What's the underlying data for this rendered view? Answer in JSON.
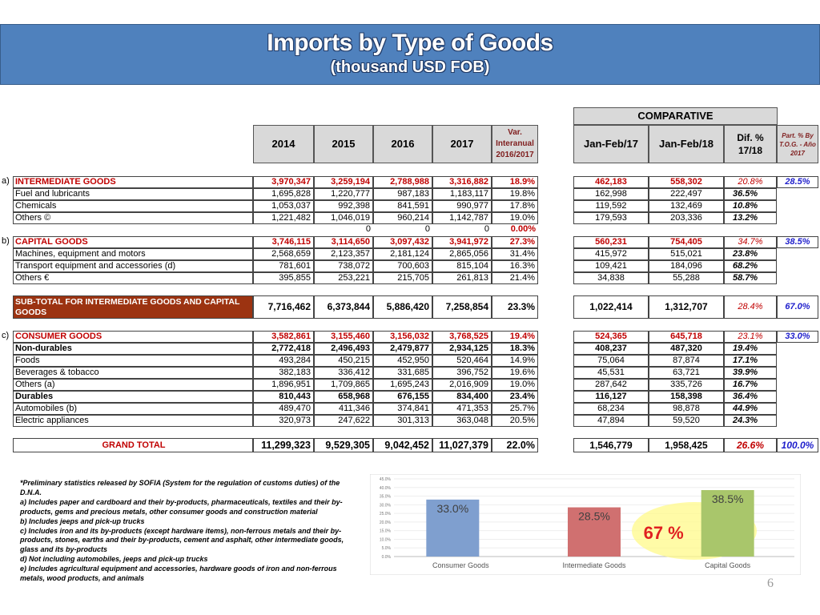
{
  "title": "Imports by Type of Goods",
  "subtitle": "(thousand USD FOB)",
  "comparative_label": "COMPARATIVE",
  "headers": {
    "y2014": "2014",
    "y2015": "2015",
    "y2016": "2016",
    "y2017": "2017",
    "var": "Var. Interanual 2016/2017",
    "jan17": "Jan-Feb/17",
    "jan18": "Jan-Feb/18",
    "dif": "Dif. % 17/18",
    "part": "Part. % By T.O.G. - Año 2017"
  },
  "rows": [
    {
      "prefix": "a)",
      "label": "INTERMEDIATE GOODS",
      "kind": "cat",
      "v": [
        "3,970,347",
        "3,259,194",
        "2,788,988",
        "3,316,882",
        "18.9%"
      ],
      "j": [
        "462,183",
        "558,302"
      ],
      "d": "20.8%",
      "p": "28.5%"
    },
    {
      "label": "Fuel and lubricants",
      "v": [
        "1,695,828",
        "1,220,777",
        "987,183",
        "1,183,117",
        "19.8%"
      ],
      "j": [
        "162,998",
        "222,497"
      ],
      "d": "36.5%"
    },
    {
      "label": "Chemicals",
      "v": [
        "1,053,037",
        "992,398",
        "841,591",
        "990,977",
        "17.8%"
      ],
      "j": [
        "119,592",
        "132,469"
      ],
      "d": "10.8%"
    },
    {
      "label": "Others ©",
      "v": [
        "1,221,482",
        "1,046,019",
        "960,214",
        "1,142,787",
        "19.0%"
      ],
      "j": [
        "179,593",
        "203,336"
      ],
      "d": "13.2%"
    },
    {
      "label": "",
      "kind": "zero",
      "v": [
        "",
        "0",
        "0",
        "0",
        "0.00%"
      ]
    },
    {
      "prefix": "b)",
      "label": "CAPITAL GOODS",
      "kind": "cat",
      "v": [
        "3,746,115",
        "3,114,650",
        "3,097,432",
        "3,941,972",
        "27.3%"
      ],
      "j": [
        "560,231",
        "754,405"
      ],
      "d": "34.7%",
      "p": "38.5%"
    },
    {
      "label": "Machines, equipment and motors",
      "v": [
        "2,568,659",
        "2,123,357",
        "2,181,124",
        "2,865,056",
        "31.4%"
      ],
      "j": [
        "415,972",
        "515,021"
      ],
      "d": "23.8%"
    },
    {
      "label": "Transport equipment and accessories (d)",
      "v": [
        "781,601",
        "738,072",
        "700,603",
        "815,104",
        "16.3%"
      ],
      "j": [
        "109,421",
        "184,096"
      ],
      "d": "68.2%"
    },
    {
      "label": "Others €",
      "v": [
        "395,855",
        "253,221",
        "215,705",
        "261,813",
        "21.4%"
      ],
      "j": [
        "34,838",
        "55,288"
      ],
      "d": "58.7%"
    },
    {
      "label": "SUB-TOTAL FOR INTERMEDIATE GOODS AND CAPITAL GOODS",
      "kind": "sub",
      "v": [
        "7,716,462",
        "6,373,844",
        "5,886,420",
        "7,258,854",
        "23.3%"
      ],
      "j": [
        "1,022,414",
        "1,312,707"
      ],
      "d": "28.4%",
      "p": "67.0%"
    },
    {
      "prefix": "c)",
      "label": "CONSUMER GOODS",
      "kind": "cat",
      "v": [
        "3,582,861",
        "3,155,460",
        "3,156,032",
        "3,768,525",
        "19.4%"
      ],
      "j": [
        "524,365",
        "645,718"
      ],
      "d": "23.1%",
      "p": "33.0%"
    },
    {
      "label": "Non-durables",
      "kind": "bold",
      "v": [
        "2,772,418",
        "2,496,493",
        "2,479,877",
        "2,934,125",
        "18.3%"
      ],
      "j": [
        "408,237",
        "487,320"
      ],
      "d": "19.4%"
    },
    {
      "label": "Foods",
      "v": [
        "493,284",
        "450,215",
        "452,950",
        "520,464",
        "14.9%"
      ],
      "j": [
        "75,064",
        "87,874"
      ],
      "d": "17.1%"
    },
    {
      "label": "Beverages & tobacco",
      "v": [
        "382,183",
        "336,412",
        "331,685",
        "396,752",
        "19.6%"
      ],
      "j": [
        "45,531",
        "63,721"
      ],
      "d": "39.9%"
    },
    {
      "label": "Others (a)",
      "v": [
        "1,896,951",
        "1,709,865",
        "1,695,243",
        "2,016,909",
        "19.0%"
      ],
      "j": [
        "287,642",
        "335,726"
      ],
      "d": "16.7%"
    },
    {
      "label": "Durables",
      "kind": "bold",
      "v": [
        "810,443",
        "658,968",
        "676,155",
        "834,400",
        "23.4%"
      ],
      "j": [
        "116,127",
        "158,398"
      ],
      "d": "36.4%"
    },
    {
      "label": "Automobiles (b)",
      "v": [
        "489,470",
        "411,346",
        "374,841",
        "471,353",
        "25.7%"
      ],
      "j": [
        "68,234",
        "98,878"
      ],
      "d": "44.9%"
    },
    {
      "label": "Electric appliances",
      "v": [
        "320,973",
        "247,622",
        "301,313",
        "363,048",
        "20.5%"
      ],
      "j": [
        "47,894",
        "59,520"
      ],
      "d": "24.3%"
    },
    {
      "label": "GRAND TOTAL",
      "kind": "total",
      "v": [
        "11,299,323",
        "9,529,305",
        "9,042,452",
        "11,027,379",
        "22.0%"
      ],
      "j": [
        "1,546,779",
        "1,958,425"
      ],
      "d": "26.6%",
      "p": "100.0%"
    }
  ],
  "notes": [
    "*Preliminary statistics released by SOFIA (System for the regulation of customs duties) of the D.N.A.",
    "a) Includes paper and cardboard and their by-products, pharmaceuticals, textiles and their by-products, gems and precious metals, other consumer goods and construction material",
    "b) Includes jeeps and pick-up trucks",
    "c) Includes iron and its by-products (except hardware items), non-ferrous metals and their by-products, stones, earths and their by-products, cement and asphalt, other intermediate goods, glass and its by-products",
    "d) Not including automobiles, jeeps and pick-up trucks",
    "e) Includes agricultural equipment and accessories, hardware goods of iron and non-ferrous metals, wood products, and animals"
  ],
  "chart_data": {
    "type": "bar",
    "categories": [
      "Consumer Goods",
      "Intermediate Goods",
      "Capital Goods"
    ],
    "values": [
      33.0,
      28.5,
      38.5
    ],
    "data_labels": [
      "33.0%",
      "28.5%",
      "38.5%"
    ],
    "colors": [
      "#7f9fcf",
      "#d07070",
      "#a9c66b"
    ],
    "ylim": [
      0,
      45
    ],
    "yticks": [
      "0.0%",
      "5.0%",
      "10.0%",
      "15.0%",
      "20.0%",
      "25.0%",
      "30.0%",
      "35.0%",
      "40.0%",
      "45.0%"
    ],
    "annotation": "67 %",
    "title": "",
    "xlabel": "",
    "ylabel": ""
  },
  "page_number": "6",
  "colors": {
    "banner": "#4f81bd",
    "category_text": "#c00000",
    "subtotal_bg": "#9c3311",
    "share_text": "#1f1fcc",
    "header_bg": "#d9d9d9"
  }
}
